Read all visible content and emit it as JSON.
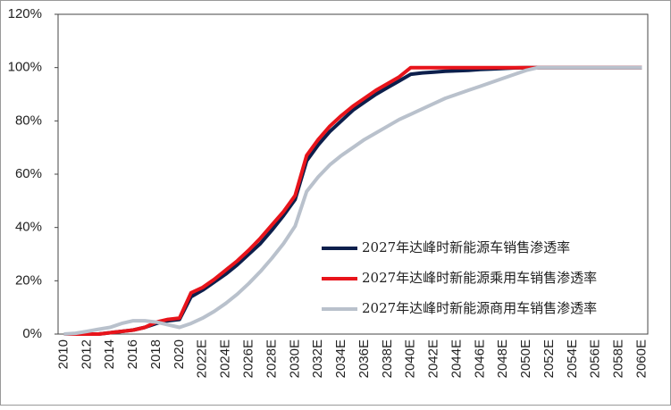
{
  "chart_data": {
    "type": "line",
    "categories": [
      "2010",
      null,
      "2012",
      null,
      "2014",
      null,
      "2016",
      null,
      "2018",
      null,
      "2020",
      null,
      "2022E",
      null,
      "2024E",
      null,
      "2026E",
      null,
      "2028E",
      null,
      "2030E",
      null,
      "2032E",
      null,
      "2034E",
      null,
      "2036E",
      null,
      "2038E",
      null,
      "2040E",
      null,
      "2042E",
      null,
      "2044E",
      null,
      "2046E",
      null,
      "2048E",
      null,
      "2050E",
      null,
      "2052E",
      null,
      "2054E",
      null,
      "2056E",
      null,
      "2058E",
      null,
      "2060E"
    ],
    "series": [
      {
        "name": "2027年达峰时新能源车销售渗透率",
        "color": "#0d1f4c",
        "values": [
          0,
          0,
          0,
          0,
          0.5,
          1,
          1.5,
          2.5,
          4,
          5,
          5.5,
          14,
          16.5,
          19.5,
          22.5,
          26,
          30,
          34,
          39,
          44.5,
          50.5,
          65,
          71,
          76,
          80,
          84,
          87,
          90,
          92.5,
          95,
          97.5,
          98,
          98.3,
          98.6,
          98.8,
          99,
          99.3,
          99.5,
          99.7,
          99.9,
          100,
          100,
          100,
          100,
          100,
          100,
          100,
          100,
          100,
          100,
          100
        ]
      },
      {
        "name": "2027年达峰时新能源乘用车销售渗透率",
        "color": "#e8141b",
        "values": [
          0,
          0,
          0,
          0,
          0.5,
          1,
          1.5,
          2.5,
          4.5,
          5.5,
          6,
          15.5,
          17.5,
          20.5,
          24,
          27.5,
          31.5,
          36,
          41,
          46,
          52,
          67,
          73,
          78,
          82,
          85.5,
          88.5,
          91.5,
          94,
          96.5,
          100,
          100,
          100,
          100,
          100,
          100,
          100,
          100,
          100,
          100,
          100,
          100,
          100,
          100,
          100,
          100,
          100,
          100,
          100,
          100,
          100
        ]
      },
      {
        "name": "2027年达峰时新能源商用车销售渗透率",
        "color": "#b9c1cc",
        "values": [
          0,
          0.3,
          1,
          1.8,
          2.5,
          4,
          5,
          5,
          4.5,
          3.5,
          2.5,
          4,
          6,
          8.5,
          11.5,
          15,
          19,
          23.5,
          28.5,
          34,
          40.5,
          53.5,
          59,
          63.5,
          67,
          70,
          73,
          75.5,
          78,
          80.5,
          82.5,
          84.5,
          86.5,
          88.5,
          90,
          91.5,
          93,
          94.5,
          96,
          97.5,
          99,
          100,
          100,
          100,
          100,
          100,
          100,
          100,
          100,
          100,
          100
        ]
      }
    ],
    "ylim": [
      0,
      120
    ],
    "yticks": [
      {
        "value": 0,
        "label": "0%"
      },
      {
        "value": 20,
        "label": "20%"
      },
      {
        "value": 40,
        "label": "40%"
      },
      {
        "value": 60,
        "label": "60%"
      },
      {
        "value": 80,
        "label": "80%"
      },
      {
        "value": 100,
        "label": "100%"
      },
      {
        "value": 120,
        "label": "120%"
      }
    ],
    "grid": false,
    "legend": "lower-right"
  }
}
